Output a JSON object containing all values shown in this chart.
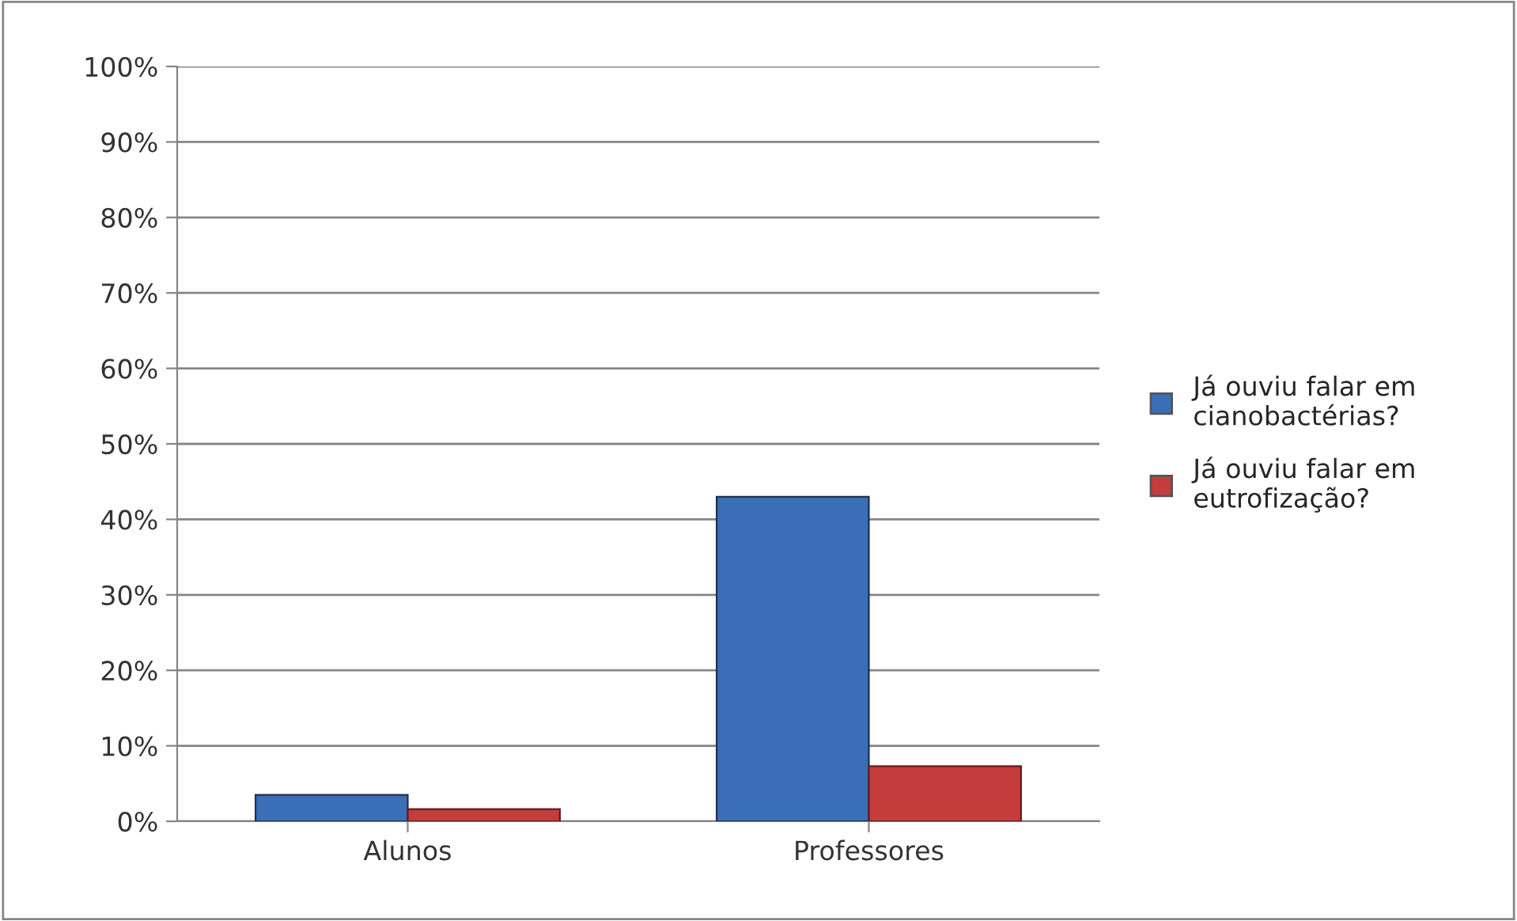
{
  "chart_data": {
    "type": "bar",
    "categories": [
      "Alunos",
      "Professores"
    ],
    "series": [
      {
        "name": "Já ouviu falar em cianobactérias?",
        "color": "#3a6fb8",
        "values": [
          3.5,
          43
        ]
      },
      {
        "name": "Já ouviu falar em eutrofização?",
        "color": "#c43c3c",
        "values": [
          1.6,
          7.3
        ]
      }
    ],
    "ylim": [
      0,
      100
    ],
    "yticks": [
      {
        "value": 0,
        "label": "0%"
      },
      {
        "value": 10,
        "label": "10%"
      },
      {
        "value": 20,
        "label": "20%"
      },
      {
        "value": 30,
        "label": "30%"
      },
      {
        "value": 40,
        "label": "40%"
      },
      {
        "value": 50,
        "label": "50%"
      },
      {
        "value": 60,
        "label": "60%"
      },
      {
        "value": 70,
        "label": "70%"
      },
      {
        "value": 80,
        "label": "80%"
      },
      {
        "value": 90,
        "label": "90%"
      },
      {
        "value": 100,
        "label": "100%"
      }
    ],
    "grid": "y",
    "legend": "right"
  }
}
